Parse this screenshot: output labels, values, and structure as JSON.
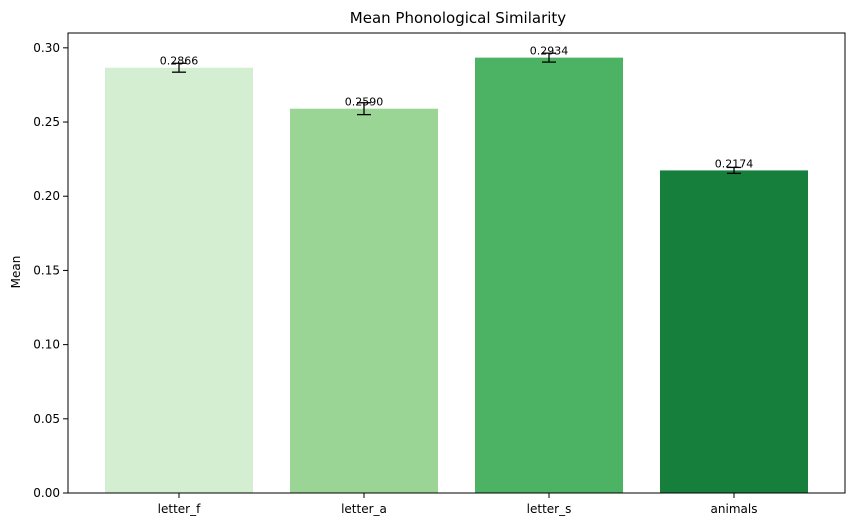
{
  "chart_data": {
    "type": "bar",
    "title": "Mean Phonological Similarity",
    "xlabel": "",
    "ylabel": "Mean",
    "ylim": [
      0,
      0.31
    ],
    "yticks": [
      "0.00",
      "0.05",
      "0.10",
      "0.15",
      "0.20",
      "0.25",
      "0.30"
    ],
    "categories": [
      "letter_f",
      "letter_a",
      "letter_s",
      "animals"
    ],
    "values": [
      0.2866,
      0.259,
      0.2934,
      0.2174
    ],
    "errors": [
      0.003,
      0.004,
      0.003,
      0.002
    ],
    "data_labels": [
      "0.2866",
      "0.2590",
      "0.2934",
      "0.2174"
    ],
    "colors": [
      "#d4eed1",
      "#9ad595",
      "#4cb264",
      "#167f3c"
    ],
    "grid": false,
    "legend": "none"
  }
}
